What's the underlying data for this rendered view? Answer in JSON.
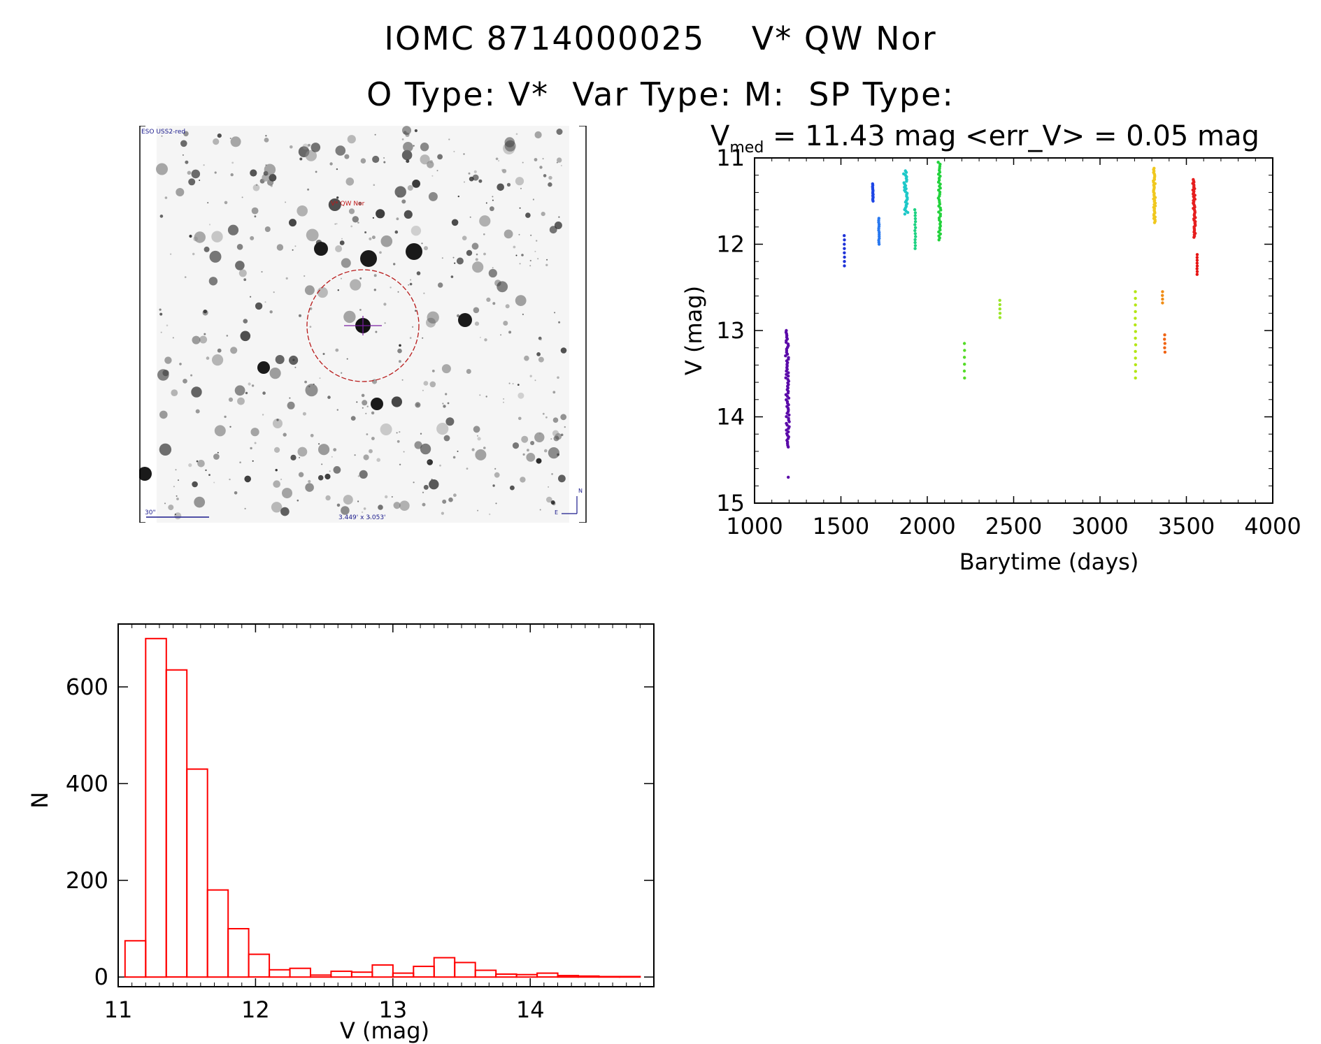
{
  "header": {
    "title_line1": "IOMC 8714000025    V* QW Nor",
    "title_line2": "O Type: V*  Var Type: M:  SP Type:"
  },
  "finder_chart": {
    "survey_label": "ESO USS2-red",
    "object_label": "V* QW Nor",
    "scale_label": "30\"",
    "field_label": "3.449' x 3.053'",
    "north_label": "N",
    "east_label": "E",
    "image_description_icon": "star-field-image"
  },
  "chart_data": [
    {
      "type": "scatter",
      "name": "light_curve",
      "title_prefix": "V",
      "title_subscript": "med",
      "title_rest": " = 11.43 mag <err_V> = 0.05 mag",
      "xlabel": "Barytime (days)",
      "ylabel": "V (mag)",
      "xlim": [
        1000,
        4000
      ],
      "ylim": [
        15,
        11
      ],
      "y_inverted": true,
      "xticks": [
        1000,
        1500,
        2000,
        2500,
        3000,
        3500,
        4000
      ],
      "yticks": [
        11,
        12,
        13,
        14,
        15
      ],
      "series": [
        {
          "name": "season1",
          "color": "#5a0aa8",
          "x_center": 1190,
          "x_spread": 18,
          "y_min": 13.0,
          "y_max": 14.35,
          "n": 70,
          "outliers": [
            [
              1195,
              14.7
            ]
          ]
        },
        {
          "name": "season2",
          "color": "#1e32d8",
          "x_center": 1520,
          "x_spread": 2,
          "y_min": 11.9,
          "y_max": 12.25,
          "n": 8
        },
        {
          "name": "season3a",
          "color": "#1e46e6",
          "x_center": 1685,
          "x_spread": 3,
          "y_min": 11.3,
          "y_max": 11.5,
          "n": 14
        },
        {
          "name": "season3b",
          "color": "#2878f0",
          "x_center": 1720,
          "x_spread": 3,
          "y_min": 11.7,
          "y_max": 12.0,
          "n": 14
        },
        {
          "name": "season4",
          "color": "#1ec8c8",
          "x_center": 1875,
          "x_spread": 18,
          "y_min": 11.15,
          "y_max": 11.65,
          "n": 30
        },
        {
          "name": "season5",
          "color": "#1ed282",
          "x_center": 1930,
          "x_spread": 4,
          "y_min": 11.6,
          "y_max": 12.05,
          "n": 14
        },
        {
          "name": "season6",
          "color": "#23d23c",
          "x_center": 2070,
          "x_spread": 14,
          "y_min": 11.05,
          "y_max": 11.95,
          "n": 40
        },
        {
          "name": "season7",
          "color": "#55dc28",
          "x_center": 2215,
          "x_spread": 2,
          "y_min": 13.15,
          "y_max": 13.55,
          "n": 6
        },
        {
          "name": "season8",
          "color": "#9be628",
          "x_center": 2420,
          "x_spread": 2,
          "y_min": 12.65,
          "y_max": 12.85,
          "n": 5
        },
        {
          "name": "season9",
          "color": "#b4e614",
          "x_center": 3205,
          "x_spread": 3,
          "y_min": 12.55,
          "y_max": 13.55,
          "n": 14
        },
        {
          "name": "season10",
          "color": "#f0c81e",
          "x_center": 3315,
          "x_spread": 10,
          "y_min": 11.12,
          "y_max": 11.75,
          "n": 40
        },
        {
          "name": "season11",
          "color": "#f08c14",
          "x_center": 3362,
          "x_spread": 2,
          "y_min": 12.55,
          "y_max": 12.68,
          "n": 4
        },
        {
          "name": "season12",
          "color": "#f06414",
          "x_center": 3375,
          "x_spread": 3,
          "y_min": 13.05,
          "y_max": 13.25,
          "n": 5
        },
        {
          "name": "season13",
          "color": "#e61e1e",
          "x_center": 3545,
          "x_spread": 12,
          "y_min": 11.25,
          "y_max": 11.92,
          "n": 45
        },
        {
          "name": "season14",
          "color": "#e61414",
          "x_center": 3562,
          "x_spread": 2,
          "y_min": 12.12,
          "y_max": 12.35,
          "n": 8
        }
      ]
    },
    {
      "type": "bar",
      "name": "histogram",
      "xlabel": "V (mag)",
      "ylabel": "N",
      "xlim": [
        11.0,
        14.9
      ],
      "ylim": [
        -20,
        730
      ],
      "xticks": [
        11,
        12,
        13,
        14
      ],
      "yticks": [
        0,
        200,
        400,
        600
      ],
      "bar_color": "#ff0000",
      "bin_edges": [
        11.05,
        11.2,
        11.35,
        11.5,
        11.65,
        11.8,
        11.95,
        12.1,
        12.25,
        12.4,
        12.55,
        12.7,
        12.85,
        13.0,
        13.15,
        13.3,
        13.45,
        13.6,
        13.75,
        13.9,
        14.05,
        14.2,
        14.35,
        14.5,
        14.65,
        14.8
      ],
      "values": [
        75,
        700,
        635,
        430,
        180,
        100,
        47,
        15,
        18,
        4,
        12,
        10,
        25,
        8,
        22,
        40,
        30,
        14,
        6,
        5,
        8,
        3,
        2,
        1,
        1
      ]
    }
  ]
}
